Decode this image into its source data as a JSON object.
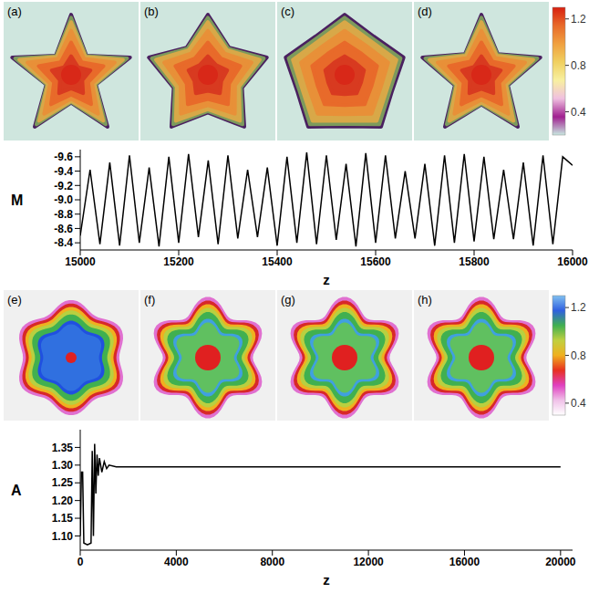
{
  "panels_top": {
    "labels": [
      "(a)",
      "(b)",
      "(c)",
      "(d)"
    ],
    "colorbar": {
      "range": [
        0.2,
        1.3
      ],
      "ticks": [
        0.4,
        0.8,
        1.2
      ]
    }
  },
  "panels_bottom": {
    "labels": [
      "(e)",
      "(f)",
      "(g)",
      "(h)"
    ],
    "colorbar": {
      "range": [
        0.3,
        1.3
      ],
      "ticks": [
        0.4,
        0.8,
        1.2
      ]
    }
  },
  "chart_data": [
    {
      "type": "line",
      "x_label": "z",
      "y_label": "M",
      "color": "#000000",
      "grid": false,
      "xlim": [
        15000,
        16000
      ],
      "ylim": [
        -8.3,
        -9.7
      ],
      "xticks": [
        15000,
        15200,
        15400,
        15600,
        15800,
        16000
      ],
      "yticks": [
        -9.6,
        -9.4,
        -9.2,
        {
          "value": -9,
          "label": "-9.0"
        },
        -8.8,
        -8.6,
        -8.4
      ],
      "x": [
        15000,
        15020,
        15040,
        15060,
        15080,
        15100,
        15120,
        15140,
        15160,
        15180,
        15200,
        15220,
        15240,
        15260,
        15280,
        15300,
        15320,
        15340,
        15360,
        15380,
        15400,
        15420,
        15440,
        15460,
        15480,
        15500,
        15520,
        15540,
        15560,
        15580,
        15600,
        15620,
        15640,
        15660,
        15680,
        15700,
        15720,
        15740,
        15760,
        15780,
        15800,
        15820,
        15840,
        15860,
        15880,
        15900,
        15920,
        15940,
        15960,
        15980,
        16000
      ],
      "values": [
        -8.5,
        -9.42,
        -8.38,
        -9.52,
        -8.36,
        -9.62,
        -8.4,
        -9.45,
        -8.35,
        -9.6,
        -8.4,
        -9.64,
        -8.48,
        -9.55,
        -8.38,
        -9.62,
        -8.46,
        -9.42,
        -8.48,
        -9.45,
        -8.36,
        -9.6,
        -8.4,
        -9.66,
        -8.38,
        -9.62,
        -8.44,
        -9.5,
        -8.35,
        -9.65,
        -8.4,
        -9.62,
        -8.46,
        -9.4,
        -8.46,
        -9.5,
        -8.36,
        -9.62,
        -8.4,
        -9.64,
        -8.42,
        -9.6,
        -8.45,
        -9.42,
        -8.45,
        -9.52,
        -8.36,
        -9.62,
        -8.38,
        -9.6,
        -9.48
      ]
    },
    {
      "type": "line",
      "x_label": "z",
      "y_label": "A",
      "color": "#000000",
      "grid": false,
      "xlim": [
        0,
        20500
      ],
      "ylim": [
        1.06,
        1.4
      ],
      "xticks": [
        0,
        4000,
        8000,
        12000,
        16000,
        20000
      ],
      "yticks": [
        {
          "value": 1.1,
          "label": "1.10"
        },
        1.15,
        {
          "value": 1.2,
          "label": "1.20"
        },
        1.25,
        {
          "value": 1.3,
          "label": "1.30"
        },
        1.35
      ],
      "x": [
        0,
        50,
        100,
        150,
        300,
        450,
        500,
        550,
        600,
        650,
        700,
        750,
        800,
        900,
        1000,
        1100,
        1200,
        1500,
        20000
      ],
      "values": [
        1.1,
        1.28,
        1.28,
        1.08,
        1.075,
        1.08,
        1.34,
        1.1,
        1.36,
        1.22,
        1.33,
        1.27,
        1.32,
        1.28,
        1.31,
        1.29,
        1.3,
        1.295,
        1.295
      ]
    }
  ]
}
